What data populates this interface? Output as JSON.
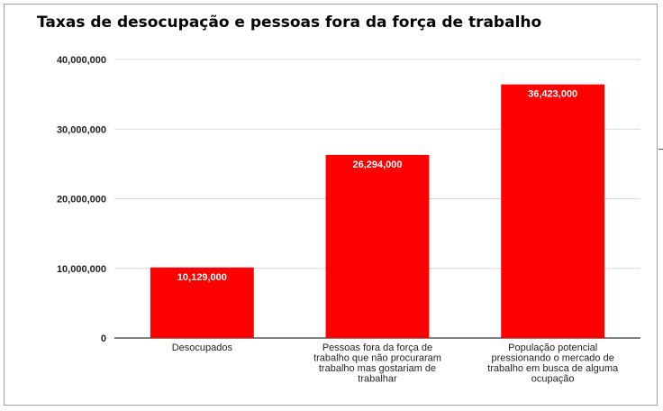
{
  "chart_data": {
    "type": "bar",
    "title": "Taxas de desocupação e pessoas fora da força de trabalho",
    "xlabel": "",
    "ylabel": "",
    "ylim": [
      0,
      40000000
    ],
    "yticks": [
      0,
      10000000,
      20000000,
      30000000,
      40000000
    ],
    "ytick_labels": [
      "0",
      "10,000,000",
      "20,000,000",
      "30,000,000",
      "40,000,000"
    ],
    "grid": true,
    "legend": "none",
    "color": "#ff0000",
    "categories": [
      [
        "Desocupados"
      ],
      [
        "Pessoas fora da força de",
        "trabalho que não procuraram",
        "trabalho mas gostariam de",
        "trabalhar"
      ],
      [
        "População potencial",
        "pressionando o mercado de",
        "trabalho em busca de alguma",
        "ocupação"
      ]
    ],
    "values": [
      10129000,
      26294000,
      36423000
    ],
    "data_labels": [
      "10,129,000",
      "26,294,000",
      "36,423,000"
    ]
  }
}
